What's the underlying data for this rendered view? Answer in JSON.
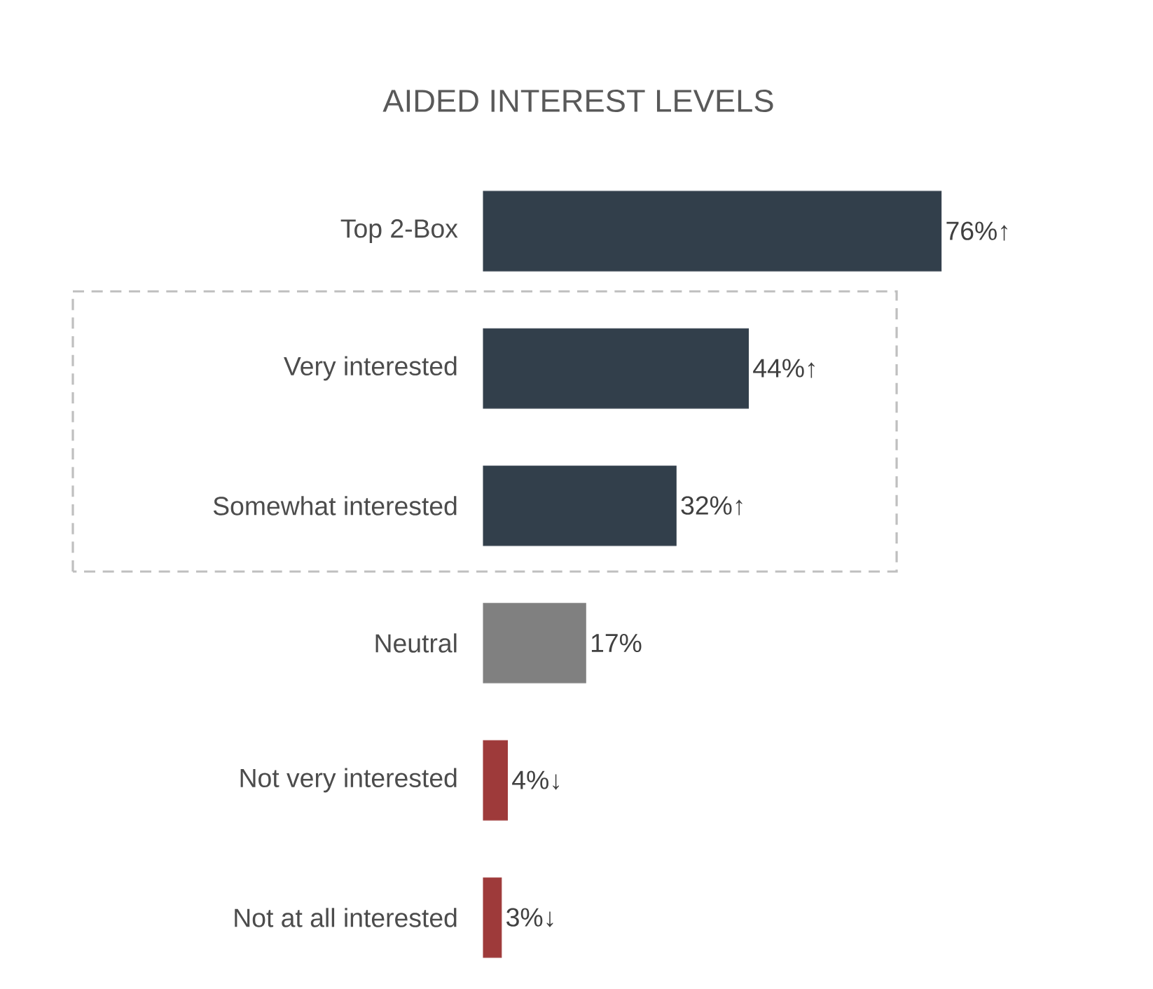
{
  "chart_data": {
    "type": "bar",
    "orientation": "horizontal",
    "title": "AIDED INTEREST LEVELS",
    "categories": [
      "Top 2-Box",
      "Very interested",
      "Somewhat interested",
      "Neutral",
      "Not very interested",
      "Not at all interested"
    ],
    "values": [
      76,
      44,
      32,
      17,
      4,
      3
    ],
    "colors": [
      "#323f4b",
      "#323f4b",
      "#323f4b",
      "#808080",
      "#9e3a3a",
      "#9e3a3a"
    ],
    "value_labels": [
      "76%↑",
      "44%↑",
      "32%↑",
      "17%",
      "4%↓",
      "3%↓"
    ]
  }
}
